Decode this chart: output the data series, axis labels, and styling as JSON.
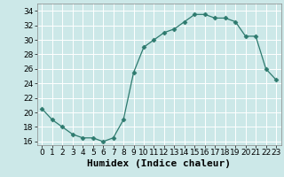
{
  "x": [
    0,
    1,
    2,
    3,
    4,
    5,
    6,
    7,
    8,
    9,
    10,
    11,
    12,
    13,
    14,
    15,
    16,
    17,
    18,
    19,
    20,
    21,
    22,
    23
  ],
  "y": [
    20.5,
    19.0,
    18.0,
    17.0,
    16.5,
    16.5,
    16.0,
    16.5,
    19.0,
    25.5,
    29.0,
    30.0,
    31.0,
    31.5,
    32.5,
    33.5,
    33.5,
    33.0,
    33.0,
    32.5,
    30.5,
    30.5,
    26.0,
    24.5
  ],
  "line_color": "#2d7a6e",
  "marker": "D",
  "marker_size": 2.5,
  "bg_color": "#cce8e8",
  "grid_color": "#b0d8d8",
  "xlabel": "Humidex (Indice chaleur)",
  "xlabel_fontsize": 8,
  "tick_fontsize": 6.5,
  "xlim": [
    -0.5,
    23.5
  ],
  "ylim": [
    15.5,
    35
  ],
  "yticks": [
    16,
    18,
    20,
    22,
    24,
    26,
    28,
    30,
    32,
    34
  ],
  "xticks": [
    0,
    1,
    2,
    3,
    4,
    5,
    6,
    7,
    8,
    9,
    10,
    11,
    12,
    13,
    14,
    15,
    16,
    17,
    18,
    19,
    20,
    21,
    22,
    23
  ]
}
